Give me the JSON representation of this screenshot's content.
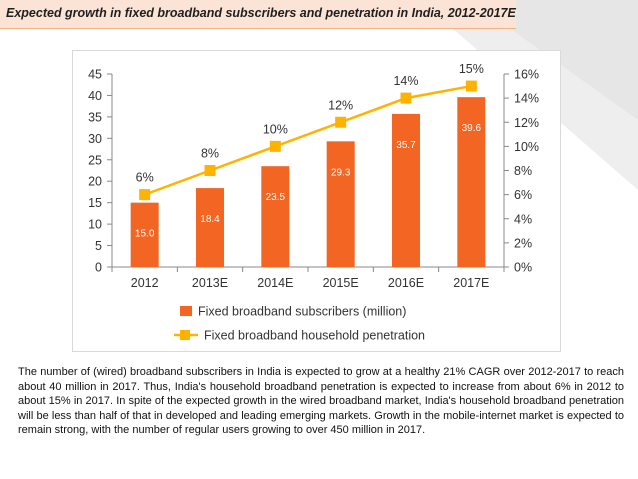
{
  "title": "Expected growth in fixed broadband subscribers and penetration in India, 2012-2017E",
  "chart_data": {
    "type": "bar",
    "categories": [
      "2012",
      "2013E",
      "2014E",
      "2015E",
      "2016E",
      "2017E"
    ],
    "series": [
      {
        "name": "Fixed broadband subscribers (million)",
        "kind": "bar",
        "axis": "left",
        "values": [
          15.0,
          18.4,
          23.5,
          29.3,
          35.7,
          39.6
        ],
        "labels": [
          "15.0",
          "18.4",
          "23.5",
          "29.3",
          "35.7",
          "39.6"
        ],
        "color": "#f26522"
      },
      {
        "name": "Fixed broadband household penetration",
        "kind": "line",
        "axis": "right",
        "values": [
          6,
          8,
          10,
          12,
          14,
          15
        ],
        "labels": [
          "6%",
          "8%",
          "10%",
          "12%",
          "14%",
          "15%"
        ],
        "color": "#ffb300"
      }
    ],
    "yleft": {
      "lim": [
        0,
        45
      ],
      "ticks": [
        "0",
        "5",
        "10",
        "15",
        "20",
        "25",
        "30",
        "35",
        "40",
        "45"
      ]
    },
    "yright": {
      "lim": [
        0,
        16
      ],
      "ticks": [
        "0%",
        "2%",
        "4%",
        "6%",
        "8%",
        "10%",
        "12%",
        "14%",
        "16%"
      ]
    },
    "legend_position": "bottom"
  },
  "description": "The number of (wired) broadband subscribers in India is expected to grow at a healthy 21% CAGR over 2012-2017 to reach about 40 million in 2017. Thus, India's household broadband penetration is expected to increase from about 6% in 2012 to about 15% in 2017. In spite of the expected growth in the wired broadband market, India's household broadband penetration will be less than half of that in developed and leading emerging markets. Growth in the mobile-internet market is expected to remain strong, with the number of regular users growing to over 450 million in 2017."
}
